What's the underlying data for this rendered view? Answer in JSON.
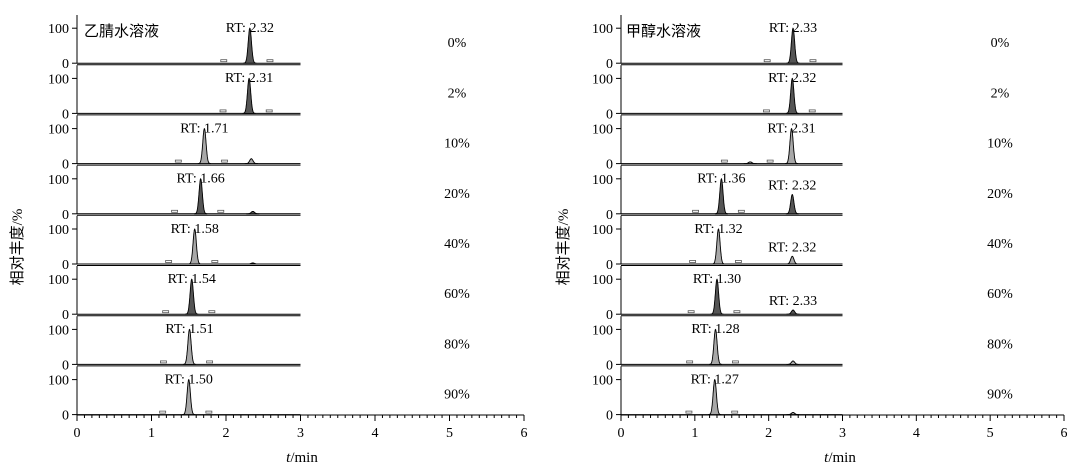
{
  "figure": {
    "ylabel": "相对丰度/%",
    "xlabel_italic": "t",
    "xlabel_rest": "/min"
  },
  "chart_data": [
    {
      "type": "line",
      "title": "乙腈水溶液",
      "xlabel": "t/min",
      "ylabel": "相对丰度/%",
      "xlim": [
        0,
        6
      ],
      "ylim": [
        0,
        100
      ],
      "x_ticks": [
        "0",
        "1",
        "2",
        "3",
        "4",
        "5",
        "6"
      ],
      "y_ticks": [
        "0",
        "100"
      ],
      "trace_xrange": [
        0,
        3
      ],
      "series": [
        {
          "name": "0%",
          "rt_label": "RT: 2.32",
          "peaks": [
            {
              "rt": 2.32,
              "height": 100
            }
          ],
          "fill": "#555555"
        },
        {
          "name": "2%",
          "rt_label": "RT: 2.31",
          "peaks": [
            {
              "rt": 2.31,
              "height": 100
            }
          ],
          "fill": "#555555"
        },
        {
          "name": "10%",
          "rt_label": "RT: 1.71",
          "peaks": [
            {
              "rt": 1.71,
              "height": 100
            },
            {
              "rt": 2.34,
              "height": 14
            }
          ],
          "fill": "#a8a8a8"
        },
        {
          "name": "20%",
          "rt_label": "RT: 1.66",
          "peaks": [
            {
              "rt": 1.66,
              "height": 100
            },
            {
              "rt": 2.36,
              "height": 7
            }
          ],
          "fill": "#555555"
        },
        {
          "name": "40%",
          "rt_label": "RT: 1.58",
          "peaks": [
            {
              "rt": 1.58,
              "height": 100
            },
            {
              "rt": 2.36,
              "height": 3
            }
          ],
          "fill": "#a8a8a8"
        },
        {
          "name": "60%",
          "rt_label": "RT: 1.54",
          "peaks": [
            {
              "rt": 1.54,
              "height": 100
            }
          ],
          "fill": "#555555"
        },
        {
          "name": "80%",
          "rt_label": "RT: 1.51",
          "peaks": [
            {
              "rt": 1.51,
              "height": 100
            }
          ],
          "fill": "#a8a8a8"
        },
        {
          "name": "90%",
          "rt_label": "RT: 1.50",
          "peaks": [
            {
              "rt": 1.5,
              "height": 100
            }
          ],
          "fill": "#a8a8a8"
        }
      ]
    },
    {
      "type": "line",
      "title": "甲醇水溶液",
      "xlabel": "t/min",
      "ylabel": "相对丰度/%",
      "xlim": [
        0,
        6
      ],
      "ylim": [
        0,
        100
      ],
      "x_ticks": [
        "0",
        "1",
        "2",
        "3",
        "4",
        "5",
        "6"
      ],
      "y_ticks": [
        "0",
        "100"
      ],
      "trace_xrange": [
        0,
        3
      ],
      "series": [
        {
          "name": "0%",
          "rt_label": "RT: 2.33",
          "peaks": [
            {
              "rt": 2.33,
              "height": 100
            }
          ],
          "fill": "#555555"
        },
        {
          "name": "2%",
          "rt_label": "RT: 2.32",
          "peaks": [
            {
              "rt": 2.32,
              "height": 100
            }
          ],
          "fill": "#555555"
        },
        {
          "name": "10%",
          "rt_label": "RT: 2.31",
          "peaks": [
            {
              "rt": 1.75,
              "height": 5
            },
            {
              "rt": 2.31,
              "height": 100
            }
          ],
          "fill": "#a8a8a8"
        },
        {
          "name": "20%",
          "rt_label": "RT: 1.36",
          "rt_label_2": "RT: 2.32",
          "peaks": [
            {
              "rt": 1.36,
              "height": 100
            },
            {
              "rt": 2.32,
              "height": 55
            }
          ],
          "fill": "#555555"
        },
        {
          "name": "40%",
          "rt_label": "RT: 1.32",
          "rt_label_2": "RT: 2.32",
          "peaks": [
            {
              "rt": 1.32,
              "height": 100
            },
            {
              "rt": 2.32,
              "height": 22
            }
          ],
          "fill": "#a8a8a8"
        },
        {
          "name": "60%",
          "rt_label": "RT: 1.30",
          "rt_label_2": "RT: 2.33",
          "peaks": [
            {
              "rt": 1.3,
              "height": 100
            },
            {
              "rt": 2.33,
              "height": 12
            }
          ],
          "fill": "#555555"
        },
        {
          "name": "80%",
          "rt_label": "RT: 1.28",
          "peaks": [
            {
              "rt": 1.28,
              "height": 100
            },
            {
              "rt": 2.33,
              "height": 10
            }
          ],
          "fill": "#a8a8a8"
        },
        {
          "name": "90%",
          "rt_label": "RT: 1.27",
          "peaks": [
            {
              "rt": 1.27,
              "height": 100
            },
            {
              "rt": 2.33,
              "height": 6
            }
          ],
          "fill": "#a8a8a8"
        }
      ]
    }
  ]
}
